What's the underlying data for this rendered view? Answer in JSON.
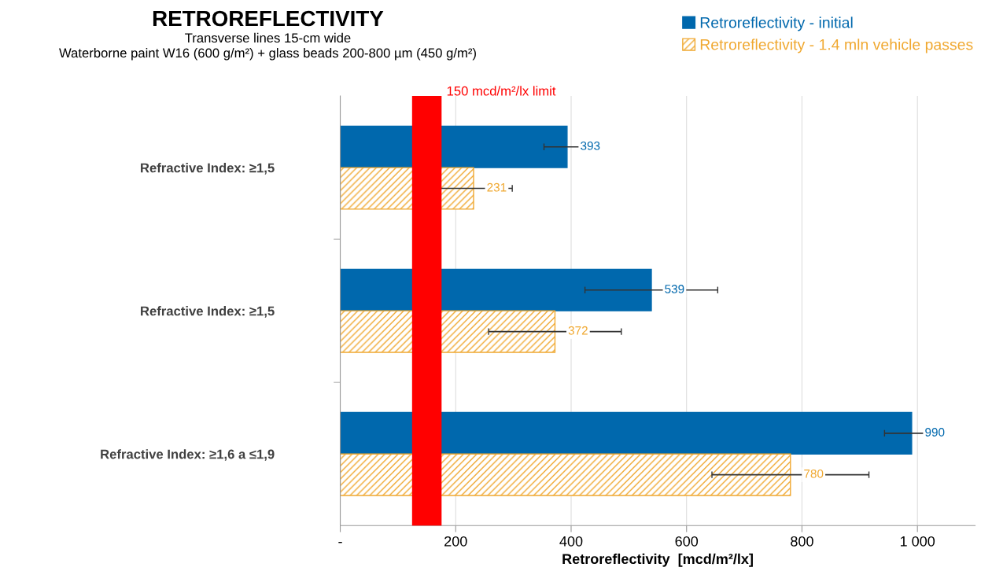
{
  "chart_data": {
    "type": "bar",
    "orientation": "horizontal",
    "title": "RETROREFLECTIVITY",
    "subtitle": "Transverse lines 15-cm wide\nWaterborne paint W16 (600 g/m²) + glass beads 200-800 µm (450 g/m²)",
    "xlabel": "Retroreflectivity  [mcd/m²/lx]",
    "categories": [
      "Refractive Index: ≥1,5",
      "Refractive Index: ≥1,5",
      "Refractive Index: ≥1,6 a ≤1,9"
    ],
    "series": [
      {
        "name": "Retroreflectivity - initial",
        "color": "#0068ad",
        "values": [
          393,
          539,
          990
        ],
        "errors": [
          40,
          115,
          47
        ]
      },
      {
        "name": "Retroreflectivity - 1.4 mln vehicle passes",
        "color": "#f0a830",
        "values": [
          231,
          372,
          780
        ],
        "errors": [
          67,
          115,
          136
        ]
      }
    ],
    "xlim": [
      0,
      1100
    ],
    "xticks": [
      {
        "value": 0,
        "label": "-"
      },
      200,
      400,
      600,
      800,
      {
        "value": 1000,
        "label": "1 000"
      }
    ],
    "ref_lines": [
      {
        "axis": "x",
        "value": 150,
        "label": "150 mcd/m²/lx limit",
        "color": "#ff0000"
      }
    ],
    "grid": "x",
    "legend": "top right",
    "data_labels": true
  }
}
